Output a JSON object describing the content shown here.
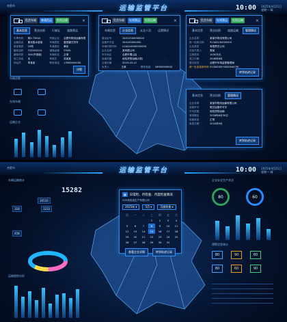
{
  "app": {
    "title": "运输监管平台",
    "clock": "10:00",
    "date_line1": "2025年4月21日",
    "date_line2": "星期一 晴",
    "location": "合肥市"
  },
  "screen1": {
    "panel_left": {
      "badges": [
        "危货车辆",
        "普通货运",
        "危险运输"
      ],
      "tabs": [
        "基本信息",
        "营业执照",
        "行驶证",
        "道路营运"
      ],
      "rows": [
        [
          "车牌号码",
          "皖A·73EA5",
          "所属企业",
          "合肥市物流运输有限公司"
        ],
        [
          "运输品名",
          "氯化氢水溶液",
          "车辆类型",
          "重型罐式货车"
        ],
        [
          "核定载质",
          "25吨",
          "车身颜色",
          "黄色"
        ],
        [
          "罐体容积",
          "TS3302024",
          "道路运输",
          "5305L"
        ],
        [
          "罐体材质",
          "304(不锈钢)",
          "车辆状态",
          "正常"
        ],
        [
          "施工状态",
          "无",
          "驾驶员",
          "张某某"
        ],
        [
          "押运员",
          "李某某",
          "联系电话",
          "13900000000"
        ]
      ],
      "button": "详细"
    },
    "panel_mid": {
      "badges": [
        "危货车辆",
        "在线营运",
        "危险运输"
      ],
      "tabs": [
        "车辆信息",
        "企业信息",
        "从业人员",
        "运营情况"
      ],
      "rows": [
        [
          "营运证号",
          "34012300000000",
          "",
          ""
        ],
        [
          "经营许可证",
          "340100000000",
          "",
          ""
        ],
        [
          "车辆识别代码",
          "LGAX2A000000000",
          "",
          ""
        ],
        [
          "企业名称",
          "某有限公司",
          "",
          ""
        ],
        [
          "所在地区",
          "合肥市蜀山区",
          "",
          ""
        ],
        [
          "经营范围",
          "危险货物运输(3类)",
          "",
          ""
        ],
        [
          "注册日期",
          "2019-03-12",
          "",
          ""
        ],
        [
          "负责人",
          "王某",
          "联系电话",
          "18900000000"
        ]
      ]
    },
    "panel_right_top": {
      "badges": [
        "危货车辆",
        "在线营运",
        "危险运输"
      ],
      "tabs": [
        "基本信息",
        "营业执照",
        "道路运输",
        "管理情况"
      ],
      "rows": [
        [
          "企业名称",
          "某某市物流有限公司",
          "",
          ""
        ],
        [
          "统一信用代码",
          "91340100000000",
          "",
          ""
        ],
        [
          "企业类型",
          "有限责任公司",
          "",
          ""
        ],
        [
          "法定代表人",
          "周某",
          "",
          ""
        ],
        [
          "注册资本",
          "1000万元",
          "",
          ""
        ],
        [
          "成立日期",
          "2008年8月",
          "",
          ""
        ],
        [
          "登记机关",
          "合肥市市场监督管理局",
          "",
          ""
        ]
      ],
      "code_label": "统一社会信用代码",
      "code_value": "91340000700000447M",
      "button": "转到轨迹记录"
    },
    "panel_right_bottom": {
      "tabs": [
        "基本信息",
        "营业执照",
        "管理情况"
      ],
      "rows": [
        [
          "企业名称",
          "某某市物流运输有限公司",
          "",
          ""
        ],
        [
          "经营许可",
          "皖交运管许可字",
          "",
          ""
        ],
        [
          "许可范围",
          "危险货物运输",
          "",
          ""
        ],
        [
          "有效期至",
          "2028年6月30日",
          "",
          ""
        ],
        [
          "经营状态",
          "正常",
          "",
          ""
        ],
        [
          "核发日期",
          "2020年9月",
          "",
          ""
        ]
      ],
      "button": "转到轨迹记录"
    },
    "left_labels": [
      "车辆总数",
      "在线车辆",
      "运输企业",
      "从业人员"
    ],
    "left_bars": [
      0.6,
      0.8,
      0.5,
      0.9,
      0.7,
      0.4,
      0.65,
      0.85
    ]
  },
  "screen2": {
    "big_number": "15282",
    "stat_a": "16533",
    "stat_b": "318",
    "stat_c": "1222",
    "stat_d": "458",
    "left_title": "车辆运输统计",
    "left_title2": "运输趋势分析",
    "right_title": "企业安全生产状况",
    "right_title2": "预警信息统计",
    "calendar": {
      "header_label": "日常检、月检查、月度检查情况",
      "year": "2025年",
      "month": "5月",
      "mode": "月度检查",
      "weekdays": [
        "日",
        "一",
        "二",
        "三",
        "四",
        "五",
        "六"
      ],
      "days": [
        "",
        "",
        "",
        "1",
        "2",
        "3",
        "4",
        "5",
        "6",
        "7",
        "8",
        "9",
        "10",
        "11",
        "12",
        "13",
        "14",
        "15",
        "16",
        "17",
        "18",
        "19",
        "20",
        "21",
        "22",
        "23",
        "24",
        "25",
        "26",
        "27",
        "28",
        "29",
        "30",
        "31",
        "",
        ""
      ],
      "selected_days": [
        "8",
        "15"
      ],
      "btn_left": "查看企业详情",
      "btn_right": "转到轨迹记录",
      "company": "XXX危险品生产有限公司"
    },
    "gauges": [
      "80",
      "60"
    ],
    "sq_values": [
      "80",
      "90",
      "60",
      "80",
      "60",
      "90"
    ],
    "right_bars": [
      0.7,
      0.5,
      0.9,
      0.6,
      0.8,
      0.4
    ],
    "bottom_bars": [
      0.9,
      0.6,
      0.75,
      0.5,
      0.85,
      0.4,
      0.65,
      0.7,
      0.55,
      0.8
    ]
  },
  "colors": {
    "accent": "#2b86e0",
    "panel_bg": "#071837",
    "green": "#2da45a",
    "yellow": "#e0a020"
  }
}
